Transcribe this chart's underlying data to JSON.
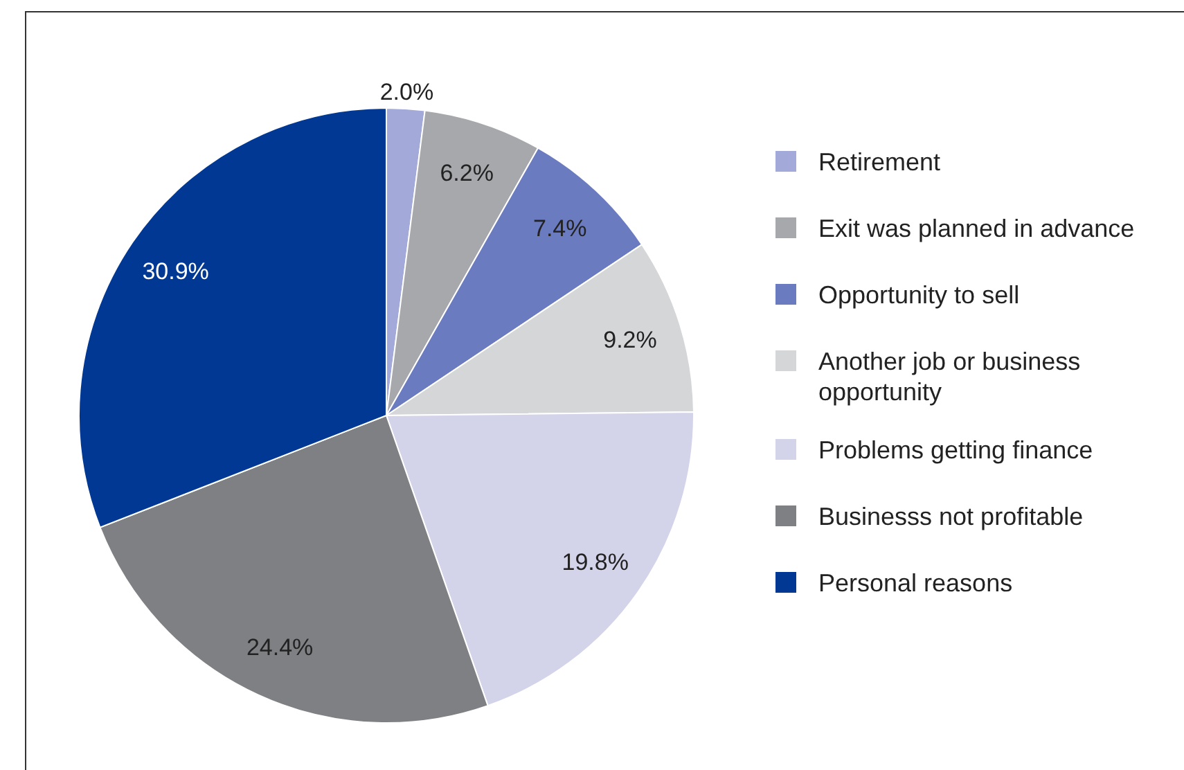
{
  "chart_data": {
    "type": "pie",
    "categories": [
      "Retirement",
      "Exit was planned in advance",
      "Opportunity to sell",
      "Another job or business opportunity",
      "Problems getting finance",
      "Businesss not profitable",
      "Personal reasons"
    ],
    "values": [
      2.0,
      6.2,
      7.4,
      9.2,
      19.8,
      24.4,
      30.9
    ],
    "value_labels": [
      "2.0%",
      "6.2%",
      "7.4%",
      "9.2%",
      "19.8%",
      "24.4%",
      "30.9%"
    ],
    "colors": [
      "#a3a9d8",
      "#a7a8ab",
      "#6b7bbf",
      "#d5d6d8",
      "#d3d3ea",
      "#7f8083",
      "#003893"
    ],
    "legend": "right"
  }
}
